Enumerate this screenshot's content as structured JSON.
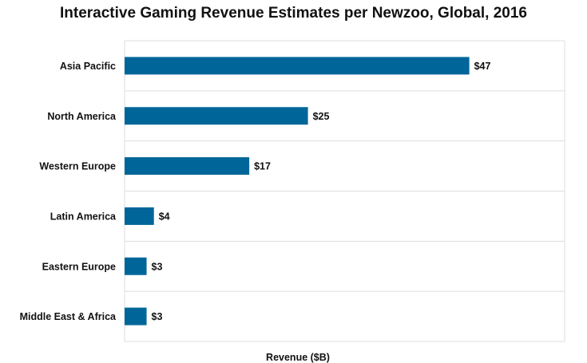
{
  "chart_data": {
    "type": "bar",
    "orientation": "horizontal",
    "title": "Interactive Gaming Revenue Estimates per Newzoo, Global, 2016",
    "xlabel": "Revenue ($B)",
    "ylabel": "",
    "categories": [
      "Asia Pacific",
      "North America",
      "Western Europe",
      "Latin America",
      "Eastern Europe",
      "Middle East & Africa"
    ],
    "values": [
      47,
      25,
      17,
      4,
      3,
      3
    ],
    "data_labels": [
      "$47",
      "$25",
      "$17",
      "$4",
      "$3",
      "$3"
    ],
    "xlim": [
      0,
      60
    ],
    "grid": true,
    "bar_color": "#006699",
    "grid_color": "#dddddd"
  }
}
